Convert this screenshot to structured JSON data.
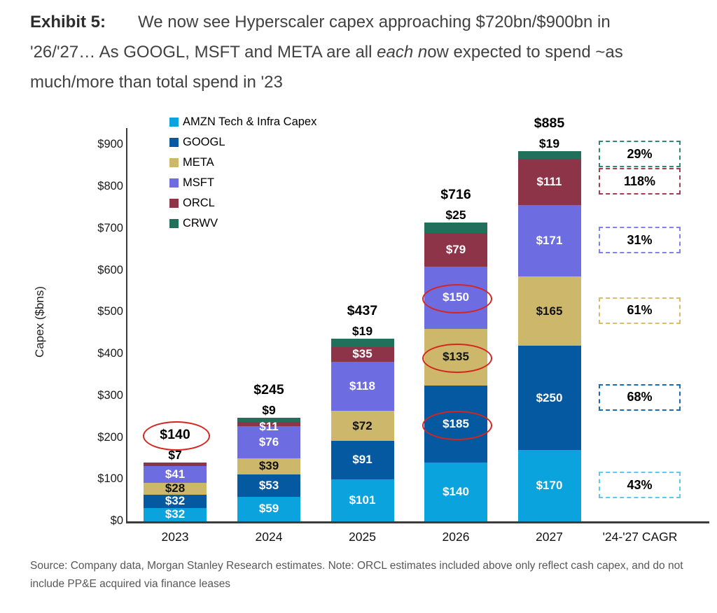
{
  "title": {
    "label": "Exhibit 5:",
    "lines": [
      [
        {
          "t": "We now see Hyperscaler capex approaching $720bn/$900bn in"
        }
      ],
      [
        {
          "t": "'26/'27… As GOOGL, MSFT and META are all "
        },
        {
          "t": "each n",
          "italic": true
        },
        {
          "t": "ow expected to spend ~as"
        }
      ],
      [
        {
          "t": "much/more than total spend in '23"
        }
      ]
    ]
  },
  "footer": {
    "source_note": "Source: Company data, Morgan Stanley Research estimates. Note: ORCL estimates included above only reflect cash capex, and do not include PP&E acquired via finance leases"
  },
  "chart_data": {
    "type": "bar",
    "stacked": true,
    "title": "Hyperscaler capex by company, 2023-2027, with '24-'27 CAGR",
    "ylabel": "Capex ($bns)",
    "xlabel": "",
    "ylim": [
      0,
      938
    ],
    "grid": false,
    "legend_position": "top-left-inside",
    "yticks": [
      {
        "value": 0,
        "label": "$0"
      },
      {
        "value": 100,
        "label": "$100"
      },
      {
        "value": 200,
        "label": "$200"
      },
      {
        "value": 300,
        "label": "$300"
      },
      {
        "value": 400,
        "label": "$400"
      },
      {
        "value": 500,
        "label": "$500"
      },
      {
        "value": 600,
        "label": "$600"
      },
      {
        "value": 700,
        "label": "$700"
      },
      {
        "value": 800,
        "label": "$800"
      },
      {
        "value": 900,
        "label": "$900"
      }
    ],
    "legend": [
      {
        "series": "AMZN",
        "label": "AMZN Tech & Infra Capex"
      },
      {
        "series": "GOOGL",
        "label": "GOOGL"
      },
      {
        "series": "META",
        "label": "META"
      },
      {
        "series": "MSFT",
        "label": "MSFT"
      },
      {
        "series": "ORCL",
        "label": "ORCL"
      },
      {
        "series": "CRWV",
        "label": "CRWV"
      }
    ],
    "series_colors": {
      "AMZN": "#0aa3de",
      "GOOGL": "#0459a1",
      "META": "#cdb76b",
      "MSFT": "#6e6ce1",
      "ORCL": "#8e3449",
      "CRWV": "#21705b"
    },
    "label_colors": {
      "AMZN": "#ffffff",
      "GOOGL": "#ffffff",
      "META": "#111111",
      "MSFT": "#ffffff",
      "ORCL": "#ffffff",
      "CRWV": "#111111"
    },
    "annotation_circle_color": "#d6251f",
    "bars": [
      {
        "year": "2023",
        "total": 140,
        "total_label": "$140",
        "total_circled": true,
        "segments": [
          {
            "series": "AMZN",
            "value": 32,
            "label": "$32",
            "placement": "inside"
          },
          {
            "series": "GOOGL",
            "value": 32,
            "label": "$32",
            "placement": "inside"
          },
          {
            "series": "META",
            "value": 28,
            "label": "$28",
            "placement": "inside"
          },
          {
            "series": "MSFT",
            "value": 41,
            "label": "$41",
            "placement": "inside"
          },
          {
            "series": "ORCL",
            "value": 7,
            "label": "$7",
            "placement": "above"
          }
        ]
      },
      {
        "year": "2024",
        "total": 245,
        "total_label": "$245",
        "total_circled": false,
        "segments": [
          {
            "series": "AMZN",
            "value": 59,
            "label": "$59",
            "placement": "inside"
          },
          {
            "series": "GOOGL",
            "value": 53,
            "label": "$53",
            "placement": "inside"
          },
          {
            "series": "META",
            "value": 39,
            "label": "$39",
            "placement": "inside"
          },
          {
            "series": "MSFT",
            "value": 76,
            "label": "$76",
            "placement": "inside"
          },
          {
            "series": "ORCL",
            "value": 11,
            "label": "$11",
            "placement": "hang"
          },
          {
            "series": "CRWV",
            "value": 9,
            "label": "$9",
            "placement": "above"
          }
        ]
      },
      {
        "year": "2025",
        "total": 437,
        "total_label": "$437",
        "total_circled": false,
        "segments": [
          {
            "series": "AMZN",
            "value": 101,
            "label": "$101",
            "placement": "inside"
          },
          {
            "series": "GOOGL",
            "value": 91,
            "label": "$91",
            "placement": "inside"
          },
          {
            "series": "META",
            "value": 72,
            "label": "$72",
            "placement": "inside"
          },
          {
            "series": "MSFT",
            "value": 118,
            "label": "$118",
            "placement": "inside"
          },
          {
            "series": "ORCL",
            "value": 35,
            "label": "$35",
            "placement": "inside"
          },
          {
            "series": "CRWV",
            "value": 19,
            "label": "$19",
            "placement": "above"
          }
        ]
      },
      {
        "year": "2026",
        "total": 716,
        "total_label": "$716",
        "total_circled": false,
        "segments": [
          {
            "series": "AMZN",
            "value": 140,
            "label": "$140",
            "placement": "inside"
          },
          {
            "series": "GOOGL",
            "value": 185,
            "label": "$185",
            "placement": "inside",
            "circled": true
          },
          {
            "series": "META",
            "value": 135,
            "label": "$135",
            "placement": "inside",
            "circled": true
          },
          {
            "series": "MSFT",
            "value": 150,
            "label": "$150",
            "placement": "inside",
            "circled": true
          },
          {
            "series": "ORCL",
            "value": 79,
            "label": "$79",
            "placement": "inside"
          },
          {
            "series": "CRWV",
            "value": 25,
            "label": "$25",
            "placement": "above"
          }
        ]
      },
      {
        "year": "2027",
        "total": 885,
        "total_label": "$885",
        "total_circled": false,
        "segments": [
          {
            "series": "AMZN",
            "value": 170,
            "label": "$170",
            "placement": "inside"
          },
          {
            "series": "GOOGL",
            "value": 250,
            "label": "$250",
            "placement": "inside"
          },
          {
            "series": "META",
            "value": 165,
            "label": "$165",
            "placement": "inside"
          },
          {
            "series": "MSFT",
            "value": 171,
            "label": "$171",
            "placement": "inside"
          },
          {
            "series": "ORCL",
            "value": 111,
            "label": "$111",
            "placement": "inside"
          },
          {
            "series": "CRWV",
            "value": 19,
            "label": "$19",
            "placement": "above"
          }
        ]
      }
    ],
    "cagr_column": {
      "axis_label": "'24-'27 CAGR",
      "boxes": [
        {
          "series": "CRWV",
          "label": "29%",
          "color": "#2f8a74"
        },
        {
          "series": "ORCL",
          "label": "118%",
          "color": "#a23d53"
        },
        {
          "series": "MSFT",
          "label": "31%",
          "color": "#8280ec"
        },
        {
          "series": "META",
          "label": "61%",
          "color": "#d9bd6c"
        },
        {
          "series": "GOOGL",
          "label": "68%",
          "color": "#1b6ab4"
        },
        {
          "series": "AMZN",
          "label": "43%",
          "color": "#5fc9f4"
        }
      ]
    }
  }
}
